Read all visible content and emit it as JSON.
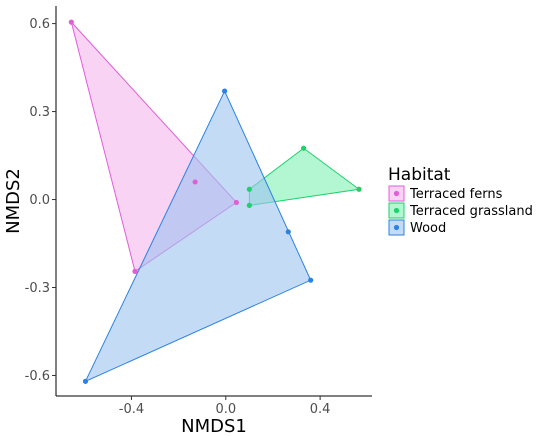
{
  "chart_data": {
    "type": "scatter",
    "xlabel": "NMDS1",
    "ylabel": "NMDS2",
    "xlim": [
      -0.72,
      0.62
    ],
    "ylim": [
      -0.67,
      0.66
    ],
    "xticks": [
      {
        "value": -0.4,
        "label": "-0.4"
      },
      {
        "value": 0.0,
        "label": "0.0"
      },
      {
        "value": 0.4,
        "label": "0.4"
      }
    ],
    "yticks": [
      {
        "value": 0.6,
        "label": "0.6"
      },
      {
        "value": 0.3,
        "label": "0.3"
      },
      {
        "value": 0.0,
        "label": "0.0"
      },
      {
        "value": -0.3,
        "label": "-0.3"
      },
      {
        "value": -0.6,
        "label": "-0.6"
      }
    ],
    "grid": false,
    "legend": {
      "title": "Habitat",
      "position": "right"
    },
    "series": [
      {
        "name": "Terraced ferns",
        "color": "#e05fd6",
        "fill": "#f3b6ec",
        "points": [
          [
            -0.655,
            0.605
          ],
          [
            -0.385,
            -0.245
          ],
          [
            0.045,
            -0.01
          ],
          [
            -0.13,
            0.06
          ]
        ],
        "hull": [
          [
            -0.655,
            0.605
          ],
          [
            -0.385,
            -0.245
          ],
          [
            0.045,
            -0.01
          ]
        ]
      },
      {
        "name": "Terraced grassland",
        "color": "#1ed26a",
        "fill": "#7ff0b4",
        "points": [
          [
            0.1,
            0.035
          ],
          [
            0.1,
            -0.02
          ],
          [
            0.33,
            0.175
          ],
          [
            0.565,
            0.035
          ]
        ],
        "hull": [
          [
            0.1,
            0.035
          ],
          [
            0.1,
            -0.02
          ],
          [
            0.565,
            0.035
          ],
          [
            0.33,
            0.175
          ]
        ]
      },
      {
        "name": "Wood",
        "color": "#2b82e3",
        "fill": "#9dc3f0",
        "points": [
          [
            -0.005,
            0.37
          ],
          [
            -0.595,
            -0.62
          ],
          [
            0.36,
            -0.275
          ],
          [
            0.265,
            -0.11
          ]
        ],
        "hull": [
          [
            -0.005,
            0.37
          ],
          [
            -0.595,
            -0.62
          ],
          [
            0.36,
            -0.275
          ]
        ]
      }
    ]
  }
}
